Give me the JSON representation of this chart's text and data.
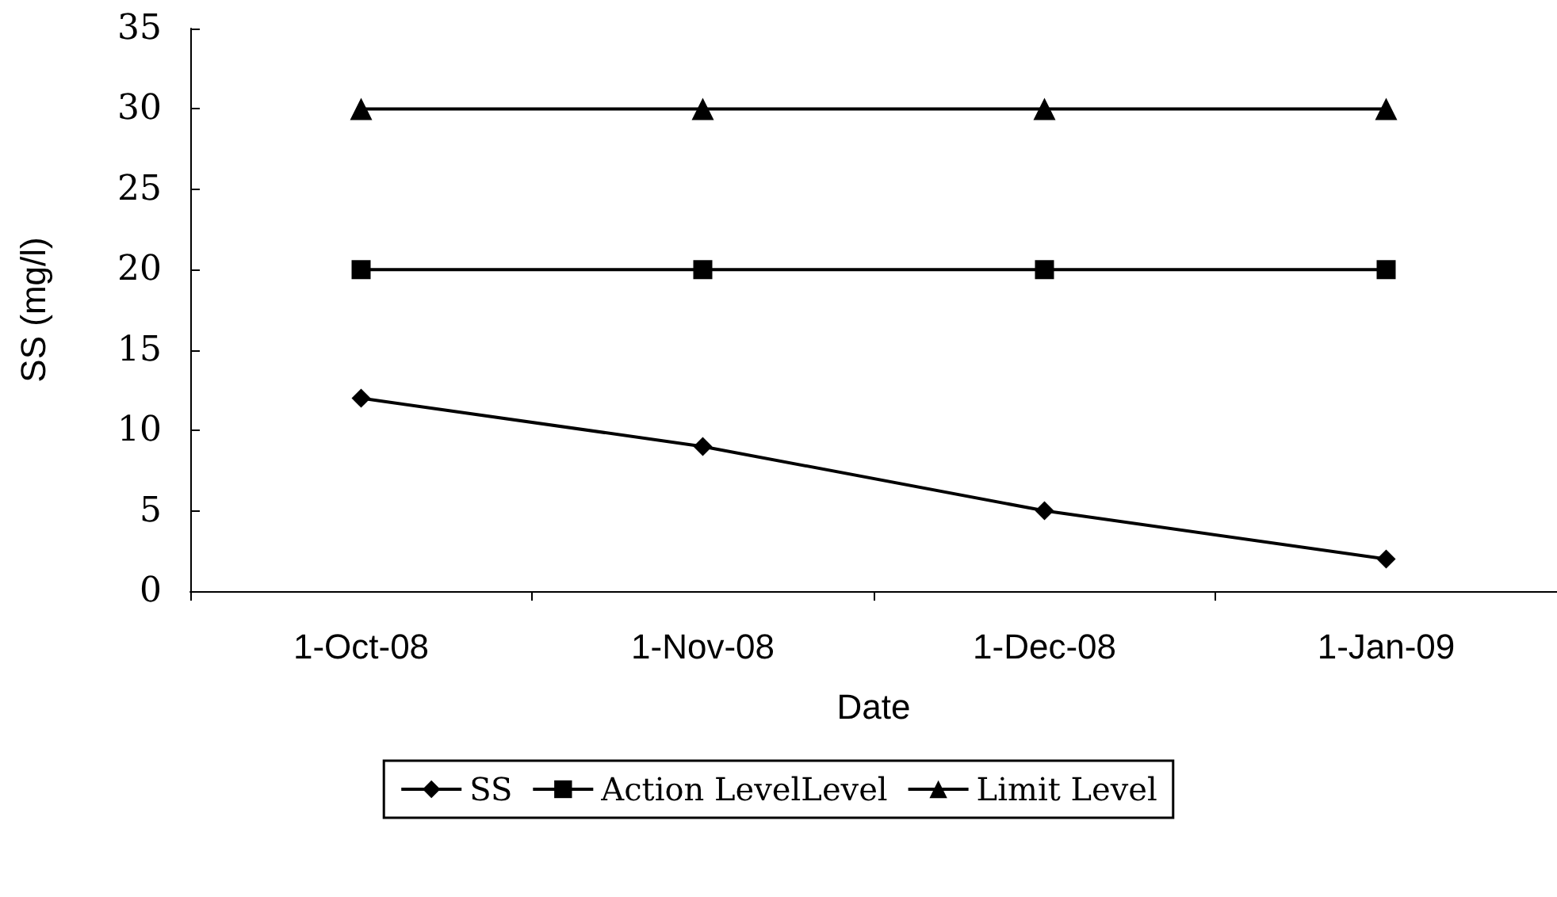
{
  "chart_data": {
    "type": "line",
    "xlabel": "Date",
    "ylabel": "SS (mg/l)",
    "categories": [
      "1-Oct-08",
      "1-Nov-08",
      "1-Dec-08",
      "1-Jan-09"
    ],
    "series": [
      {
        "name": "SS",
        "color": "#000000",
        "marker": "diamond",
        "values": [
          12,
          9,
          5,
          2
        ]
      },
      {
        "name": "Action LevelLevel",
        "color": "#000000",
        "marker": "square",
        "values": [
          20,
          20,
          20,
          20
        ]
      },
      {
        "name": "Limit Level",
        "color": "#000000",
        "marker": "triangle",
        "values": [
          30,
          30,
          30,
          30
        ]
      }
    ],
    "ylim": [
      0,
      35
    ],
    "yticks": [
      0,
      5,
      10,
      15,
      20,
      25,
      30,
      35
    ],
    "grid": false,
    "legend": "bottom",
    "line_style": "solid"
  }
}
